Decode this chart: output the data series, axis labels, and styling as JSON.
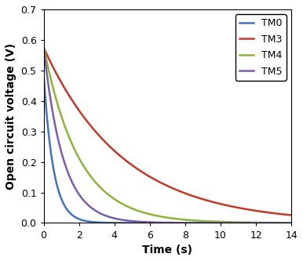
{
  "title": "",
  "xlabel": "Time (s)",
  "ylabel": "Open circuit voltage (V)",
  "xlim": [
    0,
    14
  ],
  "ylim": [
    0,
    0.7
  ],
  "xticks": [
    0,
    2,
    4,
    6,
    8,
    10,
    12,
    14
  ],
  "yticks": [
    0.0,
    0.1,
    0.2,
    0.3,
    0.4,
    0.5,
    0.6,
    0.7
  ],
  "series": [
    {
      "label": "TM0",
      "color": "#4472C4",
      "V0": 0.49,
      "tau": 0.55
    },
    {
      "label": "TM3",
      "color": "#C0392B",
      "V0": 0.575,
      "tau": 4.5
    },
    {
      "label": "TM4",
      "color": "#8DB33A",
      "V0": 0.578,
      "tau": 2.0
    },
    {
      "label": "TM5",
      "color": "#7B5EA7",
      "V0": 0.578,
      "tau": 1.1
    }
  ],
  "legend_fontsize": 9,
  "axis_fontsize": 10,
  "tick_fontsize": 9,
  "linewidth": 1.8
}
